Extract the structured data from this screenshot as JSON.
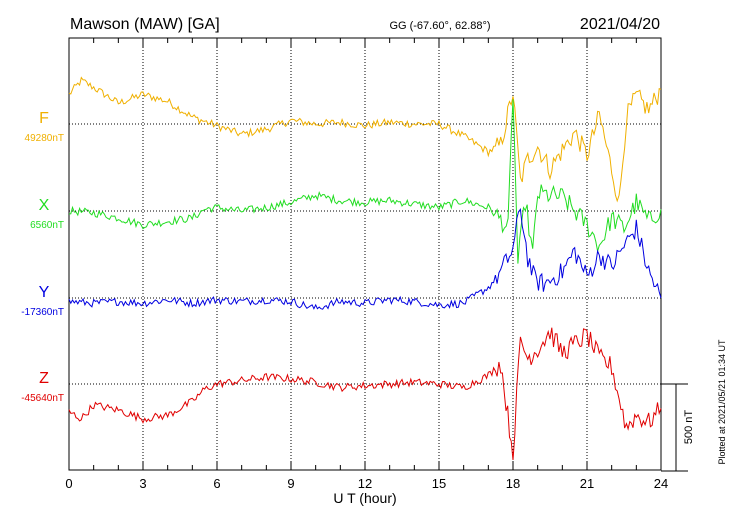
{
  "header": {
    "station": "Mawson (MAW)  [GA]",
    "coords": "GG (-67.60°,  62.88°)",
    "date": "2021/04/20"
  },
  "plotted_note": "Plotted at 2021/05/21 01:34 UT",
  "chart_data": {
    "type": "line",
    "xlabel": "U T (hour)",
    "xlim": [
      0,
      24
    ],
    "xticks": [
      0,
      3,
      6,
      9,
      12,
      15,
      18,
      21,
      24
    ],
    "x_minor_step": 1,
    "scale_bar": {
      "label": "500 nT",
      "nT": 500
    },
    "panel_range_nT": 1200,
    "series": [
      {
        "name": "F",
        "baseline_label": "49280nT",
        "baseline_nT": 49280,
        "color": "#f0b000",
        "points": [
          [
            0,
            170
          ],
          [
            0.5,
            250
          ],
          [
            1,
            210
          ],
          [
            2,
            120
          ],
          [
            3,
            170
          ],
          [
            4,
            130
          ],
          [
            5,
            40
          ],
          [
            6,
            -10
          ],
          [
            7,
            -60
          ],
          [
            8,
            -30
          ],
          [
            9,
            20
          ],
          [
            10,
            0
          ],
          [
            11,
            10
          ],
          [
            12,
            -10
          ],
          [
            13,
            10
          ],
          [
            14,
            0
          ],
          [
            15,
            0
          ],
          [
            16,
            -70
          ],
          [
            17,
            -160
          ],
          [
            17.5,
            -120
          ],
          [
            18,
            180
          ],
          [
            18.3,
            -330
          ],
          [
            18.6,
            -200
          ],
          [
            19,
            -130
          ],
          [
            19.5,
            -260
          ],
          [
            20,
            -150
          ],
          [
            20.5,
            -50
          ],
          [
            21,
            -180
          ],
          [
            21.5,
            50
          ],
          [
            22,
            -260
          ],
          [
            22.3,
            -450
          ],
          [
            22.6,
            40
          ],
          [
            23,
            160
          ],
          [
            23.5,
            80
          ],
          [
            24,
            200
          ]
        ]
      },
      {
        "name": "X",
        "baseline_label": "6560nT",
        "baseline_nT": 6560,
        "color": "#22dd22",
        "points": [
          [
            0,
            0
          ],
          [
            1,
            -10
          ],
          [
            2,
            -40
          ],
          [
            3,
            -80
          ],
          [
            4,
            -60
          ],
          [
            5,
            -40
          ],
          [
            5.5,
            10
          ],
          [
            6,
            20
          ],
          [
            7,
            0
          ],
          [
            8,
            20
          ],
          [
            9,
            50
          ],
          [
            10,
            90
          ],
          [
            11,
            60
          ],
          [
            12,
            50
          ],
          [
            13,
            60
          ],
          [
            14,
            40
          ],
          [
            15,
            20
          ],
          [
            16,
            60
          ],
          [
            17,
            20
          ],
          [
            17.5,
            -50
          ],
          [
            17.8,
            -100
          ],
          [
            18,
            680
          ],
          [
            18.2,
            -300
          ],
          [
            18.5,
            60
          ],
          [
            18.8,
            -250
          ],
          [
            19,
            100
          ],
          [
            20,
            80
          ],
          [
            21,
            -80
          ],
          [
            21.5,
            -200
          ],
          [
            22,
            -40
          ],
          [
            22.5,
            -100
          ],
          [
            23,
            50
          ],
          [
            23.5,
            -60
          ],
          [
            24,
            10
          ]
        ]
      },
      {
        "name": "Y",
        "baseline_label": "-17360nT",
        "baseline_nT": -17360,
        "color": "#0000e0",
        "points": [
          [
            0,
            -20
          ],
          [
            1,
            -30
          ],
          [
            2,
            -20
          ],
          [
            3,
            -30
          ],
          [
            4,
            -10
          ],
          [
            5,
            -30
          ],
          [
            6,
            -10
          ],
          [
            7,
            -20
          ],
          [
            8,
            -10
          ],
          [
            9,
            -20
          ],
          [
            10,
            -60
          ],
          [
            11,
            -20
          ],
          [
            12,
            -30
          ],
          [
            13,
            -10
          ],
          [
            14,
            -20
          ],
          [
            15,
            -40
          ],
          [
            16,
            -30
          ],
          [
            17,
            60
          ],
          [
            17.5,
            150
          ],
          [
            18,
            280
          ],
          [
            18.3,
            520
          ],
          [
            18.6,
            230
          ],
          [
            18.9,
            100
          ],
          [
            19.3,
            80
          ],
          [
            20,
            150
          ],
          [
            20.5,
            270
          ],
          [
            21,
            120
          ],
          [
            21.5,
            250
          ],
          [
            22,
            180
          ],
          [
            22.5,
            300
          ],
          [
            23,
            400
          ],
          [
            23.5,
            150
          ],
          [
            24,
            0
          ]
        ]
      },
      {
        "name": "Z",
        "baseline_label": "-45640nT",
        "baseline_nT": -45640,
        "color": "#e00000",
        "points": [
          [
            0,
            -160
          ],
          [
            0.5,
            -200
          ],
          [
            1,
            -120
          ],
          [
            2,
            -150
          ],
          [
            3,
            -200
          ],
          [
            4,
            -180
          ],
          [
            5,
            -100
          ],
          [
            5.5,
            -30
          ],
          [
            6,
            0
          ],
          [
            7,
            20
          ],
          [
            8,
            40
          ],
          [
            9,
            30
          ],
          [
            10,
            10
          ],
          [
            11,
            -20
          ],
          [
            12,
            -10
          ],
          [
            13,
            0
          ],
          [
            14,
            10
          ],
          [
            15,
            0
          ],
          [
            16,
            -20
          ],
          [
            17,
            50
          ],
          [
            17.5,
            120
          ],
          [
            18,
            -400
          ],
          [
            18.3,
            250
          ],
          [
            18.6,
            150
          ],
          [
            19,
            200
          ],
          [
            19.5,
            300
          ],
          [
            20,
            180
          ],
          [
            21,
            280
          ],
          [
            21.5,
            150
          ],
          [
            22,
            100
          ],
          [
            22.3,
            -80
          ],
          [
            22.6,
            -250
          ],
          [
            23,
            -180
          ],
          [
            23.5,
            -220
          ],
          [
            24,
            -140
          ]
        ]
      }
    ]
  }
}
